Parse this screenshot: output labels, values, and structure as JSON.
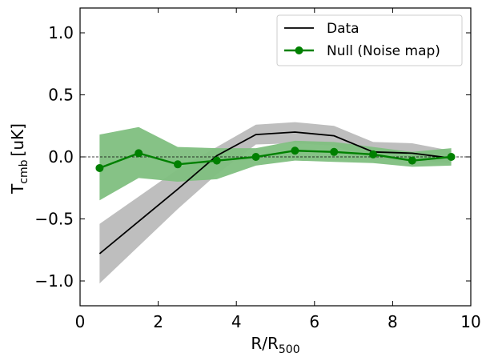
{
  "chart_data": {
    "type": "line",
    "title": "",
    "xlabel": "R/R",
    "xlabel_sub": "500",
    "ylabel": "T",
    "ylabel_sub": "cmb",
    "ylabel_unit": "[uK]",
    "xlim": [
      0,
      10
    ],
    "ylim": [
      -1.2,
      1.2
    ],
    "xticks": [
      0,
      2,
      4,
      6,
      8,
      10
    ],
    "xtick_labels": [
      "0",
      "2",
      "4",
      "6",
      "8",
      "10"
    ],
    "yticks": [
      -1.0,
      -0.5,
      0.0,
      0.5,
      1.0
    ],
    "ytick_labels": [
      "−1.0",
      "−0.5",
      "0.0",
      "0.5",
      "1.0"
    ],
    "grid": false,
    "zero_line": true,
    "legend_position": "top-right",
    "series": [
      {
        "name": "Data",
        "color": "#000000",
        "band_color": "#bebebe",
        "marker": "none",
        "x": [
          0.5,
          1.5,
          2.5,
          3.5,
          4.5,
          5.5,
          6.5,
          7.5,
          8.5,
          9.5
        ],
        "values": [
          -0.78,
          -0.52,
          -0.26,
          0.01,
          0.18,
          0.2,
          0.17,
          0.04,
          0.03,
          -0.01
        ],
        "lower": [
          -1.02,
          -0.72,
          -0.42,
          -0.14,
          0.1,
          0.11,
          0.09,
          -0.02,
          -0.03,
          -0.05
        ],
        "upper": [
          -0.54,
          -0.32,
          -0.1,
          0.08,
          0.26,
          0.28,
          0.25,
          0.12,
          0.11,
          0.05
        ]
      },
      {
        "name": "Null (Noise map)",
        "color": "#008000",
        "band_color": "#7fbf7f",
        "marker": "circle",
        "x": [
          0.5,
          1.5,
          2.5,
          3.5,
          4.5,
          5.5,
          6.5,
          7.5,
          8.5,
          9.5
        ],
        "values": [
          -0.09,
          0.03,
          -0.06,
          -0.03,
          0.0,
          0.05,
          0.04,
          0.02,
          -0.03,
          0.0
        ],
        "lower": [
          -0.35,
          -0.17,
          -0.2,
          -0.18,
          -0.07,
          -0.03,
          -0.04,
          -0.05,
          -0.08,
          -0.07
        ],
        "upper": [
          0.18,
          0.24,
          0.08,
          0.07,
          0.07,
          0.13,
          0.12,
          0.08,
          0.04,
          0.07
        ]
      }
    ]
  }
}
